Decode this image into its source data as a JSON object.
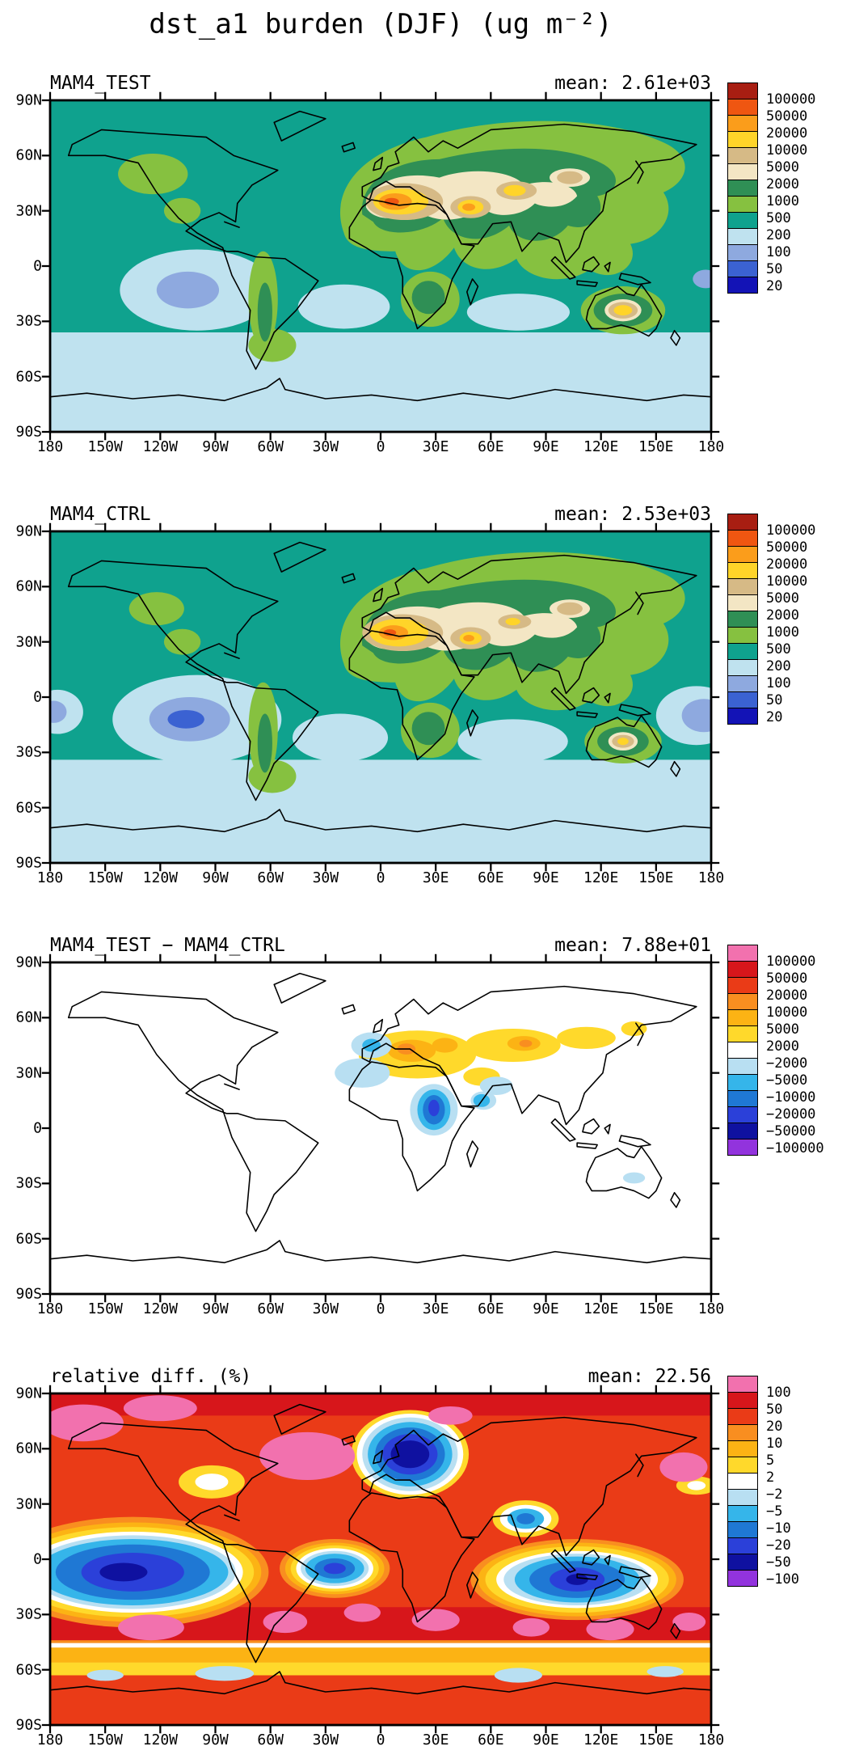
{
  "figure": {
    "title": "dst_a1 burden (DJF) (ug m⁻²)"
  },
  "axes": {
    "lat_labels": [
      "90N",
      "60N",
      "30N",
      "0",
      "30S",
      "60S",
      "90S"
    ],
    "lon_labels": [
      "180",
      "150W",
      "120W",
      "90W",
      "60W",
      "30W",
      "0",
      "30E",
      "60E",
      "90E",
      "120E",
      "150E",
      "180"
    ]
  },
  "colorbars": {
    "abs": {
      "colors": [
        "#a81e12",
        "#ef5611",
        "#fb9d1b",
        "#ffd429",
        "#d6ba86",
        "#f3e6c4",
        "#2f8f55",
        "#86c140",
        "#0fa28e",
        "#bfe2ef",
        "#8ea9df",
        "#3b62d2",
        "#1313b6"
      ],
      "labels": [
        "100000",
        "50000",
        "20000",
        "10000",
        "5000",
        "2000",
        "1000",
        "500",
        "200",
        "100",
        "50",
        "20"
      ]
    },
    "div_abs": {
      "colors": [
        "#f271ae",
        "#d7161b",
        "#ea3b17",
        "#f98e20",
        "#fcb314",
        "#ffd92b",
        "#ffffff",
        "#b8dff2",
        "#35b5ea",
        "#1f78d4",
        "#2b40d9",
        "#0f11a0",
        "#9233dd"
      ],
      "labels": [
        "100000",
        "50000",
        "20000",
        "10000",
        "5000",
        "2000",
        "−2000",
        "−5000",
        "−10000",
        "−20000",
        "−50000",
        "−100000"
      ]
    },
    "div_pct": {
      "colors": [
        "#f271ae",
        "#d7161b",
        "#ea3b17",
        "#f98e20",
        "#fcb314",
        "#ffd92b",
        "#ffffff",
        "#b8dff2",
        "#35b5ea",
        "#1f78d4",
        "#2b40d9",
        "#0f11a0",
        "#9233dd"
      ],
      "labels": [
        "100",
        "50",
        "20",
        "10",
        "5",
        "2",
        "−2",
        "−5",
        "−10",
        "−20",
        "−50",
        "−100"
      ]
    }
  },
  "panels": [
    {
      "name": "MAM4_TEST",
      "mean_text": "mean: 2.61e+03"
    },
    {
      "name": "MAM4_CTRL",
      "mean_text": "mean: 2.53e+03"
    },
    {
      "name": "MAM4_TEST − MAM4_CTRL",
      "mean_text": "mean: 7.88e+01"
    },
    {
      "name": "relative diff. (%)",
      "mean_text": "mean: 22.56"
    }
  ],
  "chart_data": [
    {
      "type": "heatmap",
      "kind": "filled-contour world map (equirectangular)",
      "title": "MAM4_TEST",
      "variable": "dst_a1 burden",
      "season": "DJF",
      "units": "ug m-2",
      "mean": 2610,
      "mean_label": "mean: 2.61e+03",
      "lon_range": [
        -180,
        180
      ],
      "lat_range": [
        -90,
        90
      ],
      "lon_ticks": [
        "180",
        "150W",
        "120W",
        "90W",
        "60W",
        "30W",
        "0",
        "30E",
        "60E",
        "90E",
        "120E",
        "150E",
        "180"
      ],
      "lat_ticks": [
        "90N",
        "60N",
        "30N",
        "0",
        "30S",
        "60S",
        "90S"
      ],
      "contour_levels": [
        20,
        50,
        100,
        200,
        500,
        1000,
        2000,
        5000,
        10000,
        20000,
        50000,
        100000
      ],
      "palette_high_to_low": [
        "#a81e12",
        "#ef5611",
        "#fb9d1b",
        "#ffd429",
        "#d6ba86",
        "#f3e6c4",
        "#2f8f55",
        "#86c140",
        "#0fa28e",
        "#bfe2ef",
        "#8ea9df",
        "#3b62d2",
        "#1313b6"
      ],
      "features": [
        "orange core 20000-50000 over central Sahara",
        "5000-20000 (yellow/tan) over Sahara, Sahel, Arabia, central Asia, Gobi",
        "2000-5000 cream halo around the dust source regions",
        "500-2000 green over most of Eurasia, southern Africa, Australia (yellow core over Australia), Andes/Patagonia",
        "200-500 teal over NH oceans and most of the tropics",
        "100-200 pale blue south of ~40S and over SE Pacific",
        "50-100 minimum (periwinkle) in SE tropical Pacific"
      ]
    },
    {
      "type": "heatmap",
      "kind": "filled-contour world map (equirectangular)",
      "title": "MAM4_CTRL",
      "variable": "dst_a1 burden",
      "season": "DJF",
      "units": "ug m-2",
      "mean": 2530,
      "mean_label": "mean: 2.53e+03",
      "lon_range": [
        -180,
        180
      ],
      "lat_range": [
        -90,
        90
      ],
      "contour_levels": [
        20,
        50,
        100,
        200,
        500,
        1000,
        2000,
        5000,
        10000,
        20000,
        50000,
        100000
      ],
      "palette_high_to_low": [
        "#a81e12",
        "#ef5611",
        "#fb9d1b",
        "#ffd429",
        "#d6ba86",
        "#f3e6c4",
        "#2f8f55",
        "#86c140",
        "#0fa28e",
        "#bfe2ef",
        "#8ea9df",
        "#3b62d2",
        "#1313b6"
      ],
      "features": [
        "pattern similar to MAM4_TEST; yellow/orange Sahara maximum",
        "stronger 20-100 (blue/periwinkle) minima in both the SE and W tropical Pacific near the date line",
        "100-200 pale blue over most SH oceans south of ~35S",
        "smaller yellow core over Australia"
      ]
    },
    {
      "type": "heatmap",
      "kind": "filled-contour difference map (equirectangular)",
      "title": "MAM4_TEST − MAM4_CTRL",
      "variable": "dst_a1 burden difference",
      "season": "DJF",
      "units": "ug m-2",
      "mean": 78.8,
      "mean_label": "mean: 7.88e+01",
      "lon_range": [
        -180,
        180
      ],
      "lat_range": [
        -90,
        90
      ],
      "contour_levels": [
        -100000,
        -50000,
        -20000,
        -10000,
        -5000,
        -2000,
        2000,
        5000,
        10000,
        20000,
        50000,
        100000
      ],
      "palette_high_to_low": [
        "#f271ae",
        "#d7161b",
        "#ea3b17",
        "#f98e20",
        "#fcb314",
        "#ffd92b",
        "#ffffff",
        "#b8dff2",
        "#35b5ea",
        "#1f78d4",
        "#2b40d9",
        "#0f11a0",
        "#9233dd"
      ],
      "features": [
        "+2000 to +20000 (yellow/orange, small red cores) across the N African coast, Mediterranean, Middle East, central and east Asia",
        "−2000 to −20000 (pale blue to blue) over Chad/Sudan into equatorial Africa, Iberia/NW Africa, Horn of Africa, Arabian Sea, small spot near N Australia",
        "white (|diff| < 2000) over all oceans and remaining land"
      ]
    },
    {
      "type": "heatmap",
      "kind": "filled-contour relative-difference map (equirectangular)",
      "title": "relative diff. (%)",
      "variable": "dst_a1 burden relative difference",
      "season": "DJF",
      "units": "%",
      "mean": 22.56,
      "mean_label": "mean: 22.56",
      "lon_range": [
        -180,
        180
      ],
      "lat_range": [
        -90,
        90
      ],
      "contour_levels": [
        -100,
        -50,
        -20,
        -10,
        -5,
        -2,
        2,
        5,
        10,
        20,
        50,
        100
      ],
      "palette_high_to_low": [
        "#f271ae",
        "#d7161b",
        "#ea3b17",
        "#f98e20",
        "#fcb314",
        "#ffd92b",
        "#ffffff",
        "#b8dff2",
        "#35b5ea",
        "#1f78d4",
        "#2b40d9",
        "#0f11a0",
        "#9233dd"
      ],
      "features": [
        "+20 to >100% (red, pink patches) over most extratropical oceans, the Arctic and N Atlantic, and SH mid-latitudes",
        "−20 to −100% (blue/royal/navy) over tropical Pacific, tropical Atlantic and Indian Ocean / Maritime Continent",
        "navy core < −50% centered on Europe / Mediterranean",
        "thin white ±2% transition bands between positive and negative regions",
        "orange/yellow zonal bands with pale-blue spots over the Southern Ocean (~50S-65S)"
      ]
    }
  ]
}
